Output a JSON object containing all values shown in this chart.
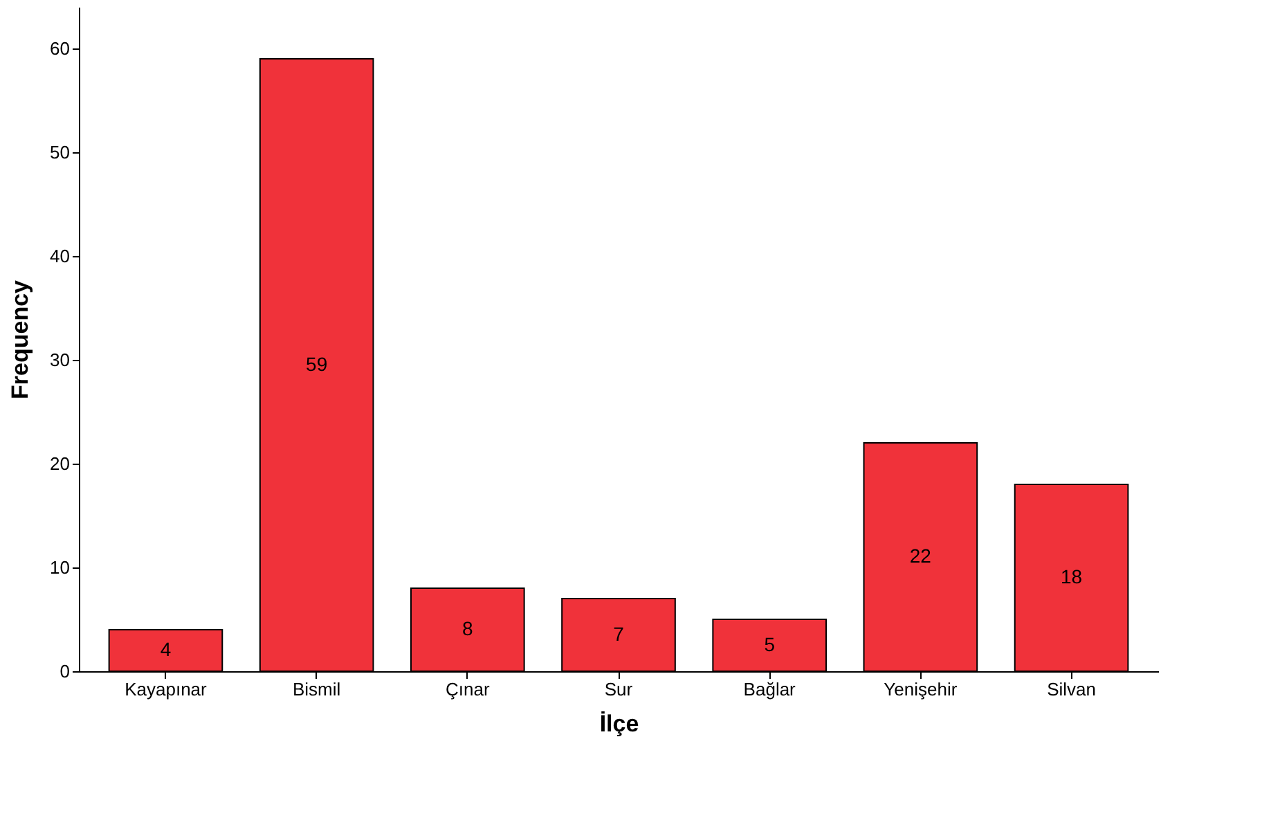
{
  "chart_data": {
    "type": "bar",
    "xlabel": "İlçe",
    "ylabel": "Frequency",
    "categories": [
      "Kayapınar",
      "Bismil",
      "Çınar",
      "Sur",
      "Bağlar",
      "Yenişehir",
      "Silvan"
    ],
    "values": [
      4,
      59,
      8,
      7,
      5,
      22,
      18
    ],
    "color": "#f0323a",
    "ylim": [
      0,
      64
    ],
    "yticks": [
      0,
      10,
      20,
      30,
      40,
      50,
      60
    ],
    "grid": false,
    "data_labels": true
  }
}
